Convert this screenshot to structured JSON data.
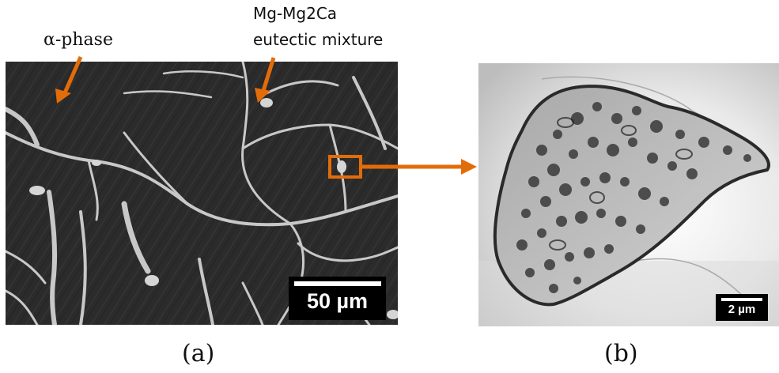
{
  "labels": {
    "alpha_phase": "α-phase",
    "eutectic_line1": "Mg-Mg2Ca",
    "eutectic_line2": "eutectic mixture"
  },
  "panel_a": {
    "caption": "(a)",
    "scale_bar": "50 µm"
  },
  "panel_b": {
    "caption": "(b)",
    "scale_bar": "2 µm"
  },
  "colors": {
    "arrow": "#E36C0A",
    "highlight_box": "#E36C0A"
  }
}
